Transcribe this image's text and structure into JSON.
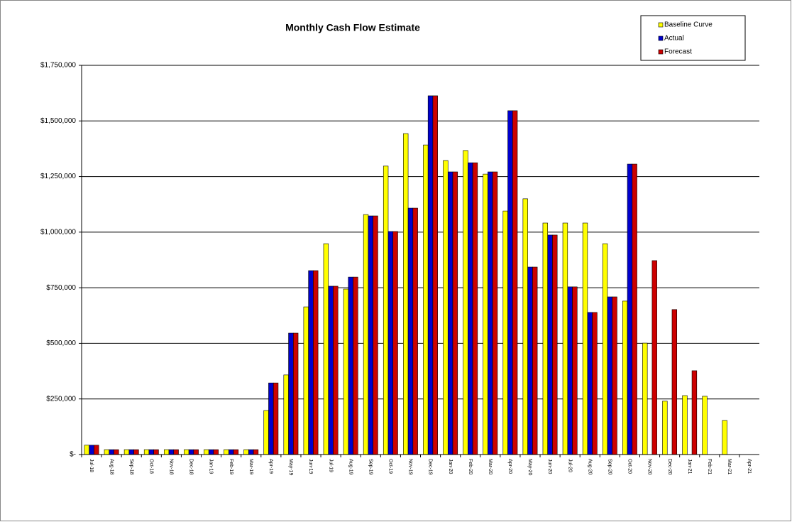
{
  "chart_data": {
    "type": "bar",
    "title": "Monthly Cash Flow Estimate",
    "categories": [
      "Jul-18",
      "Aug-18",
      "Sep-18",
      "Oct-18",
      "Nov-18",
      "Dec-18",
      "Jan-19",
      "Feb-19",
      "Mar-19",
      "Apr-19",
      "May-19",
      "Jun-19",
      "Jul-19",
      "Aug-19",
      "Sep-19",
      "Oct-19",
      "Nov-19",
      "Dec-19",
      "Jan-20",
      "Feb-20",
      "Mar-20",
      "Apr-20",
      "May-20",
      "Jun-20",
      "Jul-20",
      "Aug-20",
      "Sep-20",
      "Oct-20",
      "Nov-20",
      "Dec-20",
      "Jan-21",
      "Feb-21",
      "Mar-21",
      "Apr-21"
    ],
    "series": [
      {
        "name": "Baseline Curve",
        "color": "#ffff00",
        "values": [
          42000,
          22000,
          22000,
          22000,
          22000,
          22000,
          22000,
          22000,
          22000,
          198000,
          358000,
          664000,
          948000,
          744000,
          1079000,
          1297000,
          1443000,
          1392000,
          1322000,
          1367000,
          1261000,
          1095000,
          1150000,
          1041000,
          1041000,
          1041000,
          948000,
          690000,
          501000,
          240000,
          265000,
          262000,
          153000,
          null
        ]
      },
      {
        "name": "Actual",
        "color": "#0000cc",
        "values": [
          42000,
          22000,
          22000,
          22000,
          22000,
          22000,
          22000,
          22000,
          22000,
          322000,
          546000,
          827000,
          757000,
          798000,
          1073000,
          1003000,
          1108000,
          1613000,
          1271000,
          1312000,
          1271000,
          1546000,
          843000,
          987000,
          754000,
          639000,
          709000,
          1306000,
          null,
          null,
          null,
          null,
          null,
          null
        ]
      },
      {
        "name": "Forecast",
        "color": "#cc0000",
        "values": [
          42000,
          22000,
          22000,
          22000,
          22000,
          22000,
          22000,
          22000,
          22000,
          322000,
          546000,
          827000,
          757000,
          798000,
          1073000,
          1003000,
          1108000,
          1613000,
          1271000,
          1312000,
          1271000,
          1546000,
          843000,
          987000,
          754000,
          639000,
          709000,
          1306000,
          872000,
          652000,
          377000,
          null,
          null,
          null
        ]
      }
    ],
    "ylim": [
      0,
      1750000
    ],
    "yticks": [
      {
        "value": 0,
        "label": "$-"
      },
      {
        "value": 250000,
        "label": "$250,000"
      },
      {
        "value": 500000,
        "label": "$500,000"
      },
      {
        "value": 750000,
        "label": "$750,000"
      },
      {
        "value": 1000000,
        "label": "$1,000,000"
      },
      {
        "value": 1250000,
        "label": "$1,250,000"
      },
      {
        "value": 1500000,
        "label": "$1,500,000"
      },
      {
        "value": 1750000,
        "label": "$1,750,000"
      }
    ],
    "grid": true,
    "legend": "top-right"
  }
}
